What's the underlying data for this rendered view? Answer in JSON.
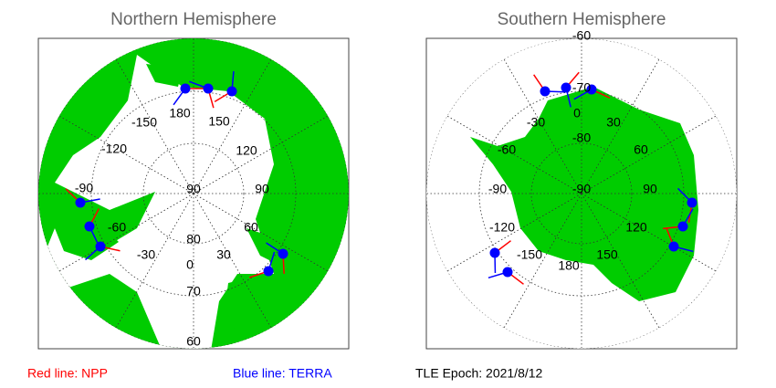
{
  "panels": [
    {
      "title": "Northern Hemisphere",
      "labels": [
        "180",
        "150",
        "-150",
        "120",
        "-120",
        "90",
        "-90",
        "60",
        "-60",
        "30",
        "-30",
        "0",
        "90",
        "80",
        "70",
        "60"
      ]
    },
    {
      "title": "Southern Hemisphere",
      "labels": [
        "-60",
        "-70",
        "-80",
        "-90",
        "0",
        "30",
        "-30",
        "60",
        "-60",
        "90",
        "-90",
        "120",
        "-120",
        "150",
        "-150",
        "180"
      ]
    }
  ],
  "legend": {
    "npp": "Red line: NPP",
    "terra": "Blue line: TERRA"
  },
  "epoch": "TLE Epoch: 2021/8/12"
}
